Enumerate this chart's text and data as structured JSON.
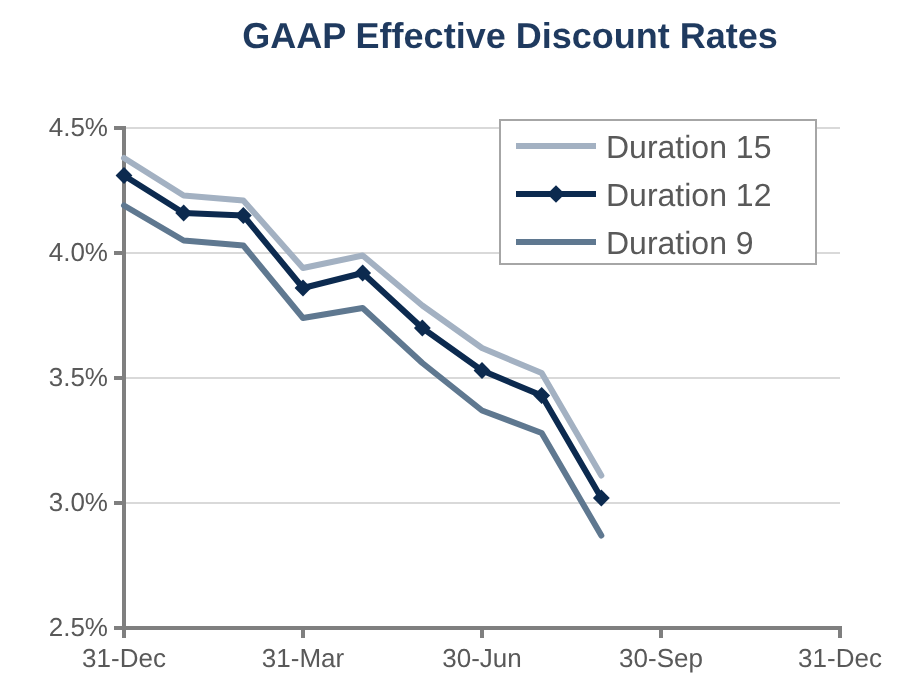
{
  "chart_data": {
    "type": "line",
    "title": "GAAP Effective Discount Rates",
    "categories": [
      "31-Dec",
      null,
      null,
      "31-Mar",
      null,
      null,
      "30-Jun",
      null,
      null,
      "30-Sep",
      null,
      null,
      "31-Dec"
    ],
    "series": [
      {
        "name": "Duration 15",
        "color": "#a3b1c2",
        "marker": "none",
        "values": [
          4.38,
          4.23,
          4.21,
          3.94,
          3.99,
          3.79,
          3.62,
          3.52,
          3.11,
          null,
          null,
          null,
          null
        ]
      },
      {
        "name": "Duration 12",
        "color": "#0c2a4f",
        "marker": "diamond",
        "values": [
          4.31,
          4.16,
          4.15,
          3.86,
          3.92,
          3.7,
          3.53,
          3.43,
          3.02,
          null,
          null,
          null,
          null
        ]
      },
      {
        "name": "Duration 9",
        "color": "#5f7890",
        "marker": "none",
        "values": [
          4.19,
          4.05,
          4.03,
          3.74,
          3.78,
          3.56,
          3.37,
          3.28,
          2.87,
          null,
          null,
          null,
          null
        ]
      }
    ],
    "ylim": [
      2.5,
      4.5
    ],
    "yticks": [
      {
        "value": 2.5,
        "label": "2.5%"
      },
      {
        "value": 3.0,
        "label": "3.0%"
      },
      {
        "value": 3.5,
        "label": "3.5%"
      },
      {
        "value": 4.0,
        "label": "4.0%"
      },
      {
        "value": 4.5,
        "label": "4.5%"
      }
    ],
    "grid": "y",
    "legend": "top right",
    "line_style": "solid"
  }
}
